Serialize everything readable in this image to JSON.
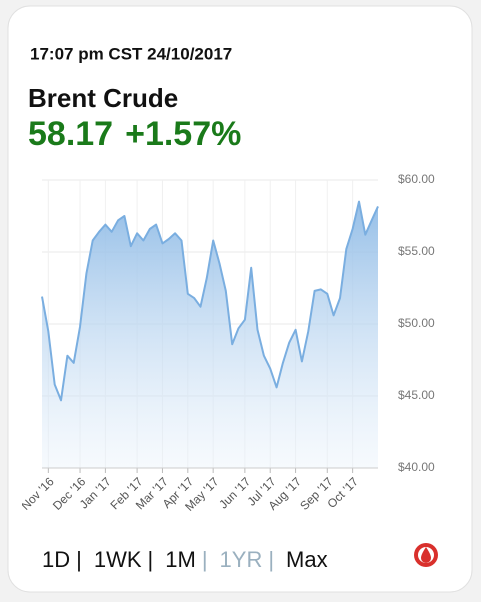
{
  "header": {
    "timestamp": "17:07 pm CST 24/10/2017",
    "name": "Brent Crude",
    "price": "58.17",
    "change": "+1.57%"
  },
  "chart_data": {
    "type": "area",
    "categories": [
      null,
      "Nov '16",
      null,
      null,
      null,
      null,
      "Dec '16",
      null,
      null,
      null,
      "Jan '17",
      null,
      null,
      null,
      null,
      "Feb '17",
      null,
      null,
      null,
      "Mar '17",
      null,
      null,
      null,
      "Apr '17",
      null,
      null,
      null,
      "May '17",
      null,
      null,
      null,
      null,
      "Jun '17",
      null,
      null,
      null,
      "Jul '17",
      null,
      null,
      null,
      "Aug '17",
      null,
      null,
      null,
      null,
      "Sep '17",
      null,
      null,
      null,
      "Oct '17",
      null,
      null,
      null,
      null
    ],
    "series": [
      {
        "color": "#7aaee0",
        "values": [
          51.9,
          49.5,
          45.8,
          44.7,
          47.8,
          47.3,
          49.8,
          53.5,
          55.8,
          56.4,
          56.9,
          56.4,
          57.2,
          57.5,
          55.4,
          56.3,
          55.8,
          56.6,
          56.9,
          55.6,
          55.9,
          56.3,
          55.8,
          52.1,
          51.8,
          51.2,
          53.2,
          55.8,
          54.2,
          52.3,
          48.6,
          49.7,
          50.3,
          53.9,
          49.6,
          47.8,
          46.9,
          45.6,
          47.3,
          48.7,
          49.6,
          47.4,
          49.5,
          52.3,
          52.4,
          52.1,
          50.6,
          51.8,
          55.2,
          56.6,
          58.5,
          56.2,
          57.2,
          58.17
        ]
      }
    ],
    "ylim": [
      40,
      60
    ],
    "yticks": [
      {
        "value": 40,
        "label": "$40.00"
      },
      {
        "value": 45,
        "label": "$45.00"
      },
      {
        "value": 50,
        "label": "$50.00"
      },
      {
        "value": 55,
        "label": "$55.00"
      },
      {
        "value": 60,
        "label": "$60.00"
      }
    ],
    "grid": true
  },
  "tabs": [
    "1D",
    "1WK",
    "1M",
    "1YR",
    "Max"
  ],
  "separator": "|",
  "active_tab": 3
}
